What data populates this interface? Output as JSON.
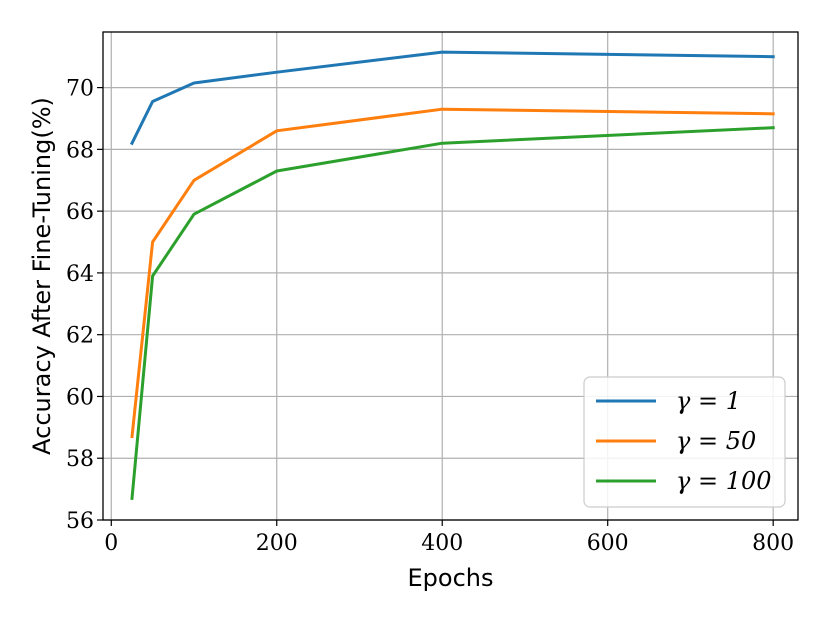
{
  "chart_data": {
    "type": "line",
    "xlabel": "Epochs",
    "ylabel": "Accuracy After Fine-Tuning(%)",
    "xlim": [
      -10,
      830
    ],
    "ylim": [
      56,
      71.8
    ],
    "xticks": [
      0,
      200,
      400,
      600,
      800
    ],
    "yticks": [
      56,
      58,
      60,
      62,
      64,
      66,
      68,
      70
    ],
    "grid": true,
    "legend_position": "lower-right",
    "x": [
      25,
      50,
      100,
      200,
      400,
      800
    ],
    "series": [
      {
        "name": "γ = 1",
        "color": "#1f77b4",
        "values": [
          68.2,
          69.55,
          70.15,
          70.5,
          71.15,
          71.0
        ]
      },
      {
        "name": "γ = 50",
        "color": "#ff7f0e",
        "values": [
          58.7,
          65.0,
          67.0,
          68.6,
          69.3,
          69.15
        ]
      },
      {
        "name": "γ = 100",
        "color": "#2ca02c",
        "values": [
          56.7,
          63.9,
          65.9,
          67.3,
          68.2,
          68.7
        ]
      }
    ]
  }
}
